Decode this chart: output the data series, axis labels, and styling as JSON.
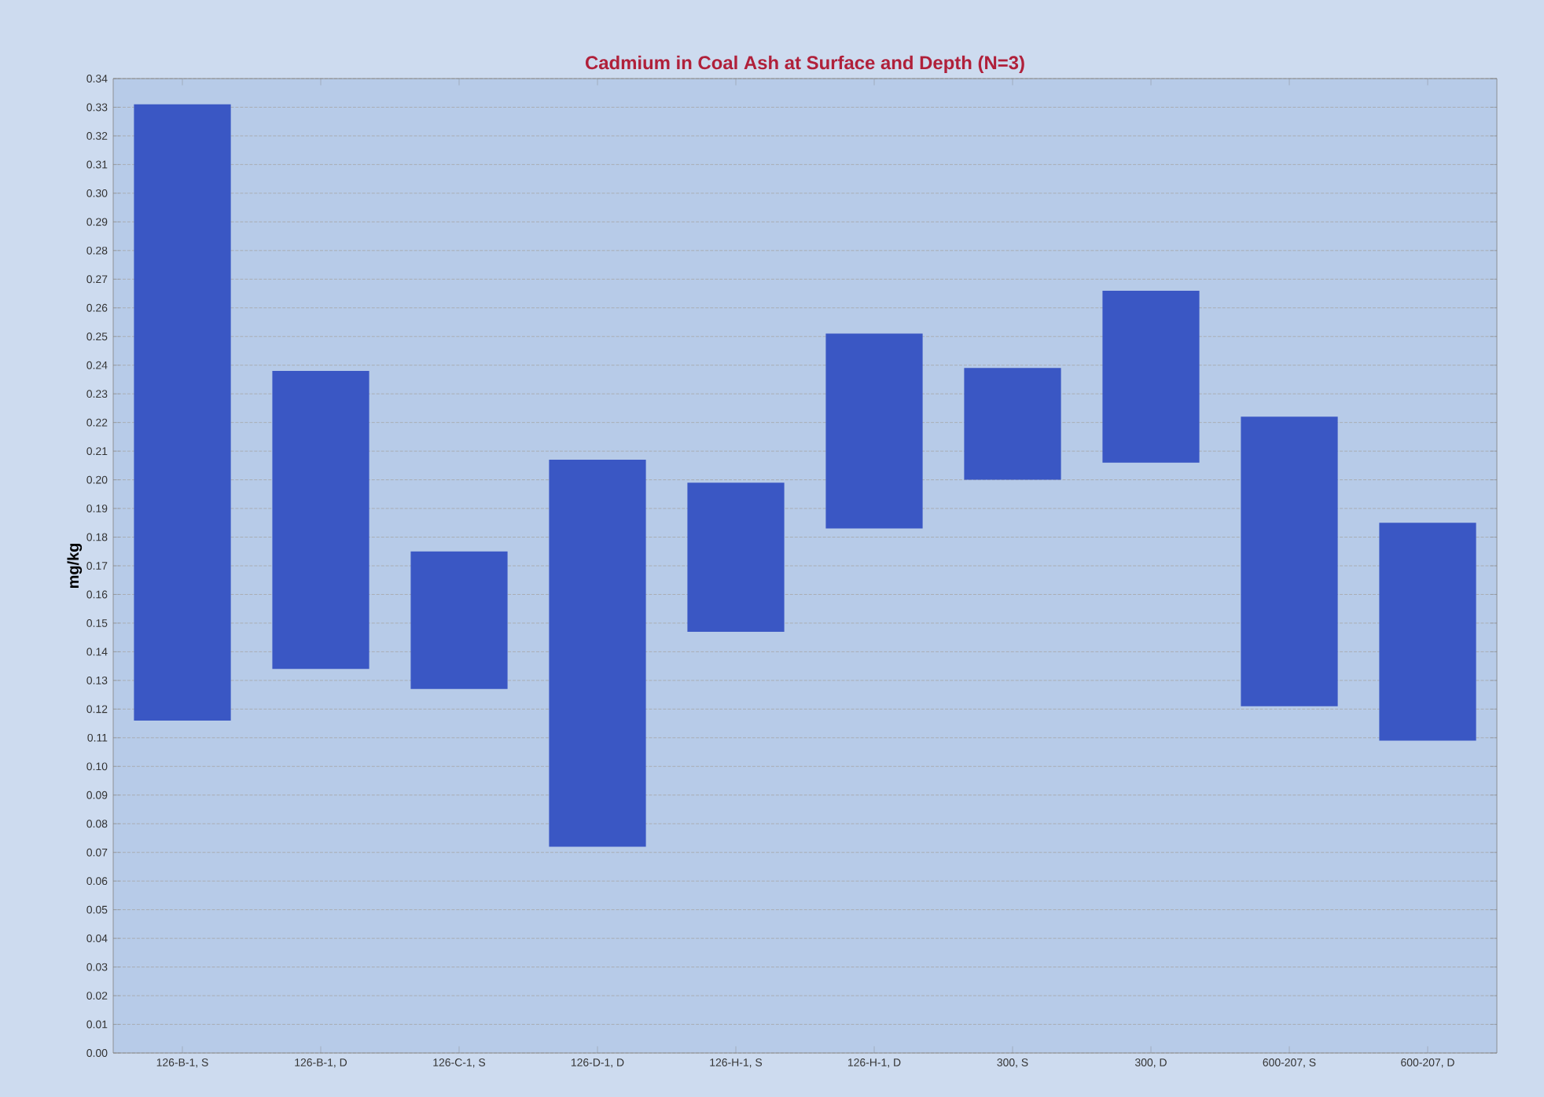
{
  "chart_data": {
    "type": "bar",
    "title": "Cadmium in Coal Ash at Surface and Depth (N=3)",
    "ylabel": "mg/kg",
    "categories": [
      "126-B-1, S",
      "126-B-1, D",
      "126-C-1, S",
      "126-D-1, D",
      "126-H-1, S",
      "126-H-1, D",
      "300, S",
      "300, D",
      "600-207, S",
      "600-207, D"
    ],
    "base": [
      0.116,
      0.134,
      0.127,
      0.072,
      0.147,
      0.183,
      0.2,
      0.206,
      0.121,
      0.109
    ],
    "values": [
      0.215,
      0.104,
      0.048,
      0.135,
      0.052,
      0.068,
      0.039,
      0.06,
      0.101,
      0.076
    ],
    "color": "#3a57c4",
    "ylim": [
      0,
      0.34
    ],
    "yticks": [
      {
        "value": 0,
        "label": "0.00"
      },
      0.01,
      0.02,
      0.03,
      0.04,
      0.05,
      0.06,
      0.07,
      0.08,
      0.09,
      {
        "value": 0.1,
        "label": "0.10"
      },
      0.11,
      0.12,
      0.13,
      0.14,
      0.15,
      0.16,
      0.17,
      0.18,
      0.19,
      {
        "value": 0.2,
        "label": "0.20"
      },
      0.21,
      0.22,
      0.23,
      0.24,
      0.25,
      0.26,
      0.27,
      0.28,
      0.29,
      {
        "value": 0.3,
        "label": "0.30"
      },
      0.31,
      0.32,
      0.33,
      0.34
    ],
    "grid": "y"
  }
}
